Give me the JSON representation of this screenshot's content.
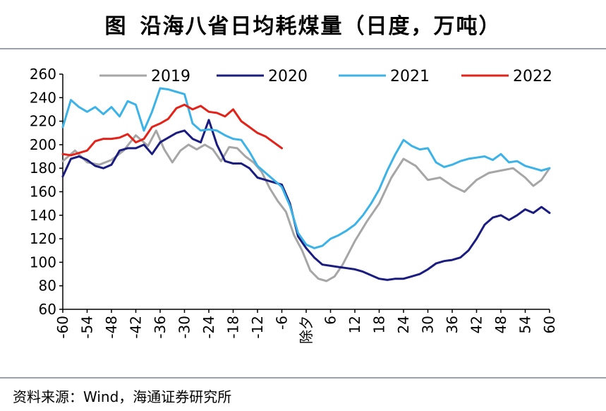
{
  "title": {
    "figure_label": "图",
    "text": "沿海八省日均耗煤量（日度，万吨）"
  },
  "source": "资料来源：Wind，海通证券研究所",
  "colors": {
    "2019": "#a6a6a6",
    "2020": "#1a1c80",
    "2021": "#3bb3e8",
    "2022": "#e3231a"
  },
  "chart_data": {
    "type": "line",
    "title": "沿海八省日均耗煤量（日度，万吨）",
    "xlabel": "",
    "ylabel": "",
    "xlim": [
      -60,
      60
    ],
    "ylim": [
      60,
      260
    ],
    "yticks": [
      60,
      80,
      100,
      120,
      140,
      160,
      180,
      200,
      220,
      240,
      260
    ],
    "xticks": [
      "-60",
      "-54",
      "-48",
      "-42",
      "-36",
      "-30",
      "-24",
      "-18",
      "-12",
      "-6",
      "除夕",
      "6",
      "12",
      "18",
      "24",
      "30",
      "36",
      "42",
      "48",
      "54",
      "60"
    ],
    "legend_position": "top",
    "series": [
      {
        "name": "2019",
        "x": [
          -60,
          -57,
          -54,
          -51,
          -48,
          -45,
          -42,
          -39,
          -37,
          -35,
          -33,
          -31,
          -29,
          -27,
          -25,
          -23,
          -21,
          -19,
          -17,
          -15,
          -13,
          -11,
          -9,
          -7,
          -5,
          -3,
          -1,
          1,
          3,
          5,
          7,
          9,
          12,
          15,
          18,
          21,
          24,
          27,
          30,
          33,
          36,
          39,
          42,
          45,
          48,
          51,
          54,
          56,
          58,
          60
        ],
        "y": [
          186,
          195,
          185,
          183,
          187,
          195,
          208,
          199,
          212,
          196,
          185,
          195,
          200,
          196,
          200,
          196,
          186,
          198,
          197,
          190,
          185,
          177,
          163,
          152,
          143,
          123,
          110,
          93,
          86,
          84,
          88,
          98,
          118,
          135,
          150,
          172,
          188,
          182,
          170,
          172,
          165,
          160,
          170,
          176,
          178,
          180,
          172,
          165,
          170,
          180
        ]
      },
      {
        "name": "2020",
        "x": [
          -60,
          -58,
          -56,
          -54,
          -52,
          -50,
          -48,
          -46,
          -44,
          -42,
          -40,
          -38,
          -36,
          -34,
          -32,
          -30,
          -28,
          -26,
          -24,
          -22,
          -20,
          -18,
          -16,
          -14,
          -12,
          -10,
          -8,
          -6,
          -4,
          -2,
          0,
          2,
          4,
          6,
          8,
          10,
          12,
          14,
          16,
          18,
          20,
          22,
          24,
          26,
          28,
          30,
          32,
          34,
          36,
          38,
          40,
          42,
          44,
          46,
          48,
          50,
          52,
          54,
          56,
          58,
          60
        ],
        "y": [
          173,
          188,
          190,
          187,
          182,
          180,
          183,
          195,
          197,
          197,
          200,
          192,
          202,
          206,
          210,
          212,
          205,
          202,
          221,
          200,
          186,
          184,
          184,
          180,
          172,
          170,
          168,
          166,
          150,
          122,
          112,
          104,
          98,
          97,
          96,
          95,
          94,
          92,
          89,
          86,
          85,
          86,
          86,
          88,
          90,
          94,
          99,
          101,
          102,
          104,
          110,
          120,
          132,
          138,
          140,
          136,
          140,
          145,
          142,
          147,
          142
        ]
      },
      {
        "name": "2021",
        "x": [
          -60,
          -58,
          -56,
          -54,
          -52,
          -50,
          -48,
          -46,
          -44,
          -42,
          -40,
          -38,
          -36,
          -34,
          -32,
          -30,
          -28,
          -26,
          -24,
          -22,
          -20,
          -18,
          -16,
          -14,
          -12,
          -10,
          -8,
          -6,
          -4,
          -2,
          0,
          2,
          4,
          6,
          8,
          10,
          12,
          14,
          16,
          18,
          20,
          22,
          24,
          26,
          28,
          30,
          32,
          34,
          36,
          38,
          40,
          42,
          44,
          46,
          48,
          50,
          52,
          54,
          56,
          58,
          60
        ],
        "y": [
          215,
          238,
          232,
          228,
          232,
          226,
          232,
          224,
          237,
          234,
          212,
          228,
          248,
          247,
          245,
          243,
          218,
          212,
          213,
          212,
          208,
          205,
          204,
          194,
          182,
          176,
          170,
          164,
          148,
          125,
          115,
          112,
          114,
          120,
          123,
          127,
          132,
          140,
          150,
          162,
          178,
          192,
          204,
          199,
          196,
          197,
          185,
          181,
          183,
          186,
          188,
          189,
          190,
          187,
          192,
          185,
          186,
          182,
          180,
          178,
          180
        ]
      },
      {
        "name": "2022",
        "x": [
          -60,
          -58,
          -56,
          -54,
          -52,
          -50,
          -48,
          -46,
          -44,
          -42,
          -40,
          -38,
          -36,
          -34,
          -32,
          -30,
          -28,
          -26,
          -24,
          -22,
          -20,
          -18,
          -16,
          -14,
          -12,
          -10,
          -8,
          -6
        ],
        "y": [
          192,
          191,
          193,
          195,
          203,
          205,
          205,
          206,
          209,
          202,
          205,
          215,
          218,
          222,
          231,
          234,
          230,
          233,
          228,
          227,
          224,
          230,
          220,
          215,
          210,
          207,
          202,
          197
        ]
      }
    ]
  }
}
